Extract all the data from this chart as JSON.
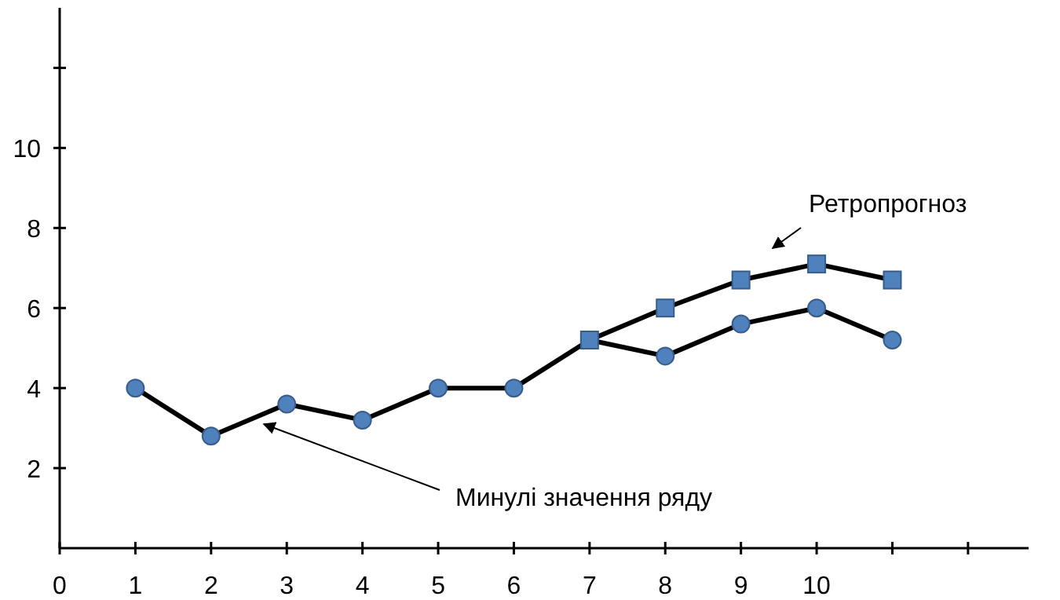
{
  "chart_data": {
    "type": "line",
    "x": [
      1,
      2,
      3,
      4,
      5,
      6,
      7,
      8,
      9,
      10,
      11
    ],
    "series": [
      {
        "name": "Минулі значення ряду",
        "color": "#4f81bd",
        "marker": "circle",
        "values": [
          4.0,
          2.8,
          3.6,
          3.2,
          4.0,
          4.0,
          5.2,
          4.8,
          5.6,
          6.0,
          5.2
        ]
      },
      {
        "name": "Ретропрогноз",
        "color": "#4f81bd",
        "marker": "square",
        "values": [
          null,
          null,
          null,
          null,
          null,
          null,
          5.2,
          6.0,
          6.7,
          7.1,
          6.7
        ]
      }
    ],
    "xlim": [
      0,
      12.8
    ],
    "xticks": [
      0,
      1,
      2,
      3,
      4,
      5,
      6,
      7,
      8,
      9,
      10,
      {
        "value": 11,
        "label": null
      },
      {
        "value": 12,
        "label": null
      }
    ],
    "ylim": [
      0,
      13.5
    ],
    "yticks": [
      2,
      4,
      6,
      8,
      10,
      {
        "value": 12,
        "label": null
      }
    ],
    "grid": false,
    "line_style": "solid"
  }
}
